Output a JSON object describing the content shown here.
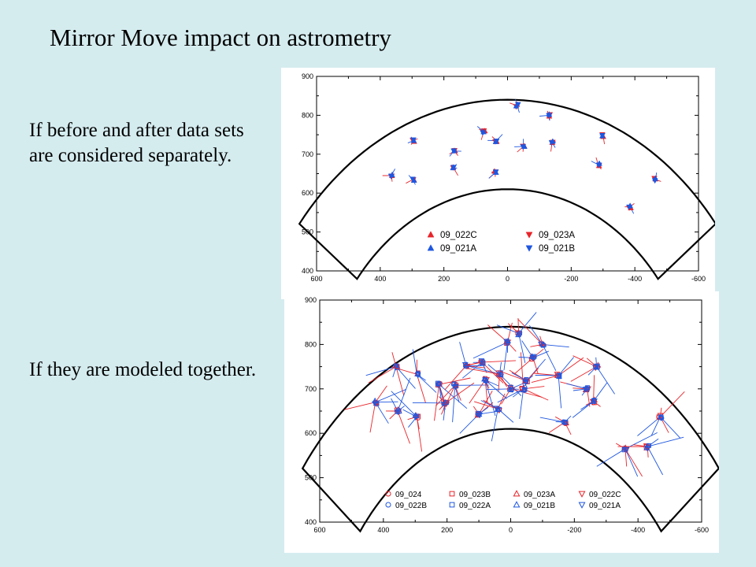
{
  "slide": {
    "title": "Mirror Move impact on astrometry",
    "caption_top": "If before and after data sets are considered separately.",
    "caption_bottom": "If they are modeled together."
  },
  "colors": {
    "background": "#d5ecef",
    "red": "#e8242a",
    "blue": "#1f57e0"
  },
  "chart_data": [
    {
      "type": "scatter",
      "title": "",
      "xlabel": "",
      "ylabel": "",
      "xlim": [
        600,
        -600
      ],
      "ylim": [
        400,
        900
      ],
      "x_ticks": [
        "600",
        "400",
        "200",
        "0",
        "-200",
        "-400",
        "-600"
      ],
      "y_ticks": [
        "400",
        "500",
        "600",
        "700",
        "800",
        "900"
      ],
      "grid": false,
      "legend_position": "bottom-center",
      "field_outline": {
        "shape": "annular-sector",
        "center": [
          0,
          10
        ],
        "r_inner": 600,
        "r_outer": 830,
        "theta_deg": 52
      },
      "series": [
        {
          "name": "09_022C",
          "color": "#e8242a",
          "marker": "triangle-up-filled"
        },
        {
          "name": "09_023A",
          "color": "#e8242a",
          "marker": "triangle-down-filled"
        },
        {
          "name": "09_021A",
          "color": "#1f57e0",
          "marker": "triangle-up-filled"
        },
        {
          "name": "09_021B",
          "color": "#1f57e0",
          "marker": "triangle-down-filled"
        }
      ],
      "stars": [
        {
          "x": 365,
          "y": 645
        },
        {
          "x": 297,
          "y": 635
        },
        {
          "x": 295,
          "y": 735
        },
        {
          "x": 170,
          "y": 665
        },
        {
          "x": 168,
          "y": 708
        },
        {
          "x": 75,
          "y": 758
        },
        {
          "x": 38,
          "y": 653
        },
        {
          "x": 35,
          "y": 735
        },
        {
          "x": -30,
          "y": 825
        },
        {
          "x": -50,
          "y": 720
        },
        {
          "x": -130,
          "y": 800
        },
        {
          "x": -140,
          "y": 730
        },
        {
          "x": -285,
          "y": 673
        },
        {
          "x": -300,
          "y": 748
        },
        {
          "x": -385,
          "y": 565
        },
        {
          "x": -465,
          "y": 635
        }
      ]
    },
    {
      "type": "scatter",
      "title": "",
      "xlabel": "",
      "ylabel": "",
      "xlim": [
        600,
        -600
      ],
      "ylim": [
        400,
        900
      ],
      "x_ticks": [
        "600",
        "400",
        "200",
        "0",
        "-200",
        "-400",
        "-600"
      ],
      "y_ticks": [
        "400",
        "500",
        "600",
        "700",
        "800",
        "900"
      ],
      "grid": false,
      "legend_position": "bottom-center",
      "field_outline": {
        "shape": "annular-sector",
        "center": [
          0,
          10
        ],
        "r_inner": 600,
        "r_outer": 830,
        "theta_deg": 52
      },
      "series": [
        {
          "name": "09_024",
          "color": "#e8242a",
          "marker": "circle-open"
        },
        {
          "name": "09_023B",
          "color": "#e8242a",
          "marker": "square-open"
        },
        {
          "name": "09_023A",
          "color": "#e8242a",
          "marker": "triangle-up-open"
        },
        {
          "name": "09_022C",
          "color": "#e8242a",
          "marker": "triangle-down-open"
        },
        {
          "name": "09_022B",
          "color": "#1f57e0",
          "marker": "circle-open"
        },
        {
          "name": "09_022A",
          "color": "#1f57e0",
          "marker": "square-open"
        },
        {
          "name": "09_021B",
          "color": "#1f57e0",
          "marker": "triangle-up-open"
        },
        {
          "name": "09_021A",
          "color": "#1f57e0",
          "marker": "triangle-down-open"
        }
      ],
      "stars": [
        {
          "x": 425,
          "y": 670
        },
        {
          "x": 360,
          "y": 750
        },
        {
          "x": 355,
          "y": 650
        },
        {
          "x": 295,
          "y": 733
        },
        {
          "x": 295,
          "y": 637
        },
        {
          "x": 225,
          "y": 710
        },
        {
          "x": 205,
          "y": 668
        },
        {
          "x": 175,
          "y": 708
        },
        {
          "x": 140,
          "y": 752
        },
        {
          "x": 100,
          "y": 643
        },
        {
          "x": 90,
          "y": 760
        },
        {
          "x": 80,
          "y": 720
        },
        {
          "x": 40,
          "y": 655
        },
        {
          "x": 35,
          "y": 733
        },
        {
          "x": 10,
          "y": 805
        },
        {
          "x": 0,
          "y": 700
        },
        {
          "x": -25,
          "y": 825
        },
        {
          "x": -40,
          "y": 700
        },
        {
          "x": -50,
          "y": 718
        },
        {
          "x": -70,
          "y": 770
        },
        {
          "x": -100,
          "y": 800
        },
        {
          "x": -150,
          "y": 730
        },
        {
          "x": -170,
          "y": 625
        },
        {
          "x": -240,
          "y": 700
        },
        {
          "x": -260,
          "y": 672
        },
        {
          "x": -270,
          "y": 750
        },
        {
          "x": -360,
          "y": 565
        },
        {
          "x": -430,
          "y": 570
        },
        {
          "x": -470,
          "y": 637
        }
      ]
    }
  ]
}
